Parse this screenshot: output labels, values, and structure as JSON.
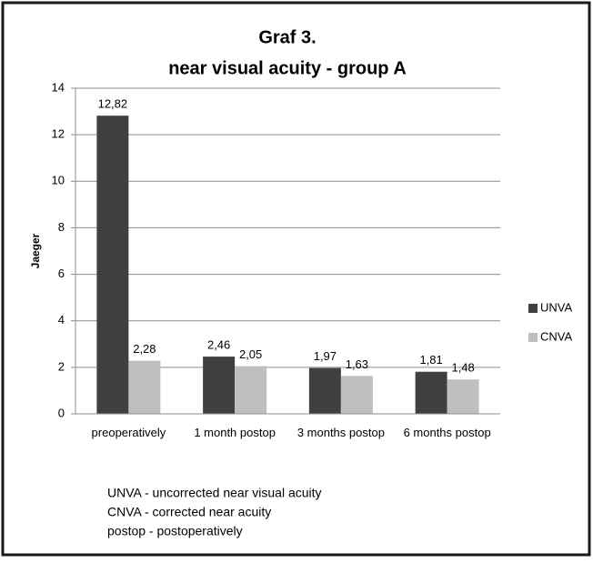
{
  "chart_data": {
    "type": "bar",
    "title": "Graf 3.",
    "subtitle": "near visual acuity - group A",
    "y_label": "Jaeger",
    "categories": [
      "preoperatively",
      "1 month postop",
      "3 months postop",
      "6 months postop"
    ],
    "series": [
      {
        "name": "UNVA",
        "color": "#404040",
        "values": [
          12.82,
          2.46,
          1.97,
          1.81
        ],
        "value_labels": [
          "12,82",
          "2,46",
          "1,97",
          "1,81"
        ]
      },
      {
        "name": "CNVA",
        "color": "#bfbfbf",
        "values": [
          2.28,
          2.05,
          1.63,
          1.48
        ],
        "value_labels": [
          "2,28",
          "2,05",
          "1,63",
          "1,48"
        ]
      }
    ],
    "ylim": [
      0,
      14
    ],
    "yticks": [
      0,
      2,
      4,
      6,
      8,
      10,
      12,
      14
    ],
    "grid": true,
    "legend": "right",
    "notes": [
      "UNVA - uncorrected near visual acuity",
      "CNVA - corrected near acuity",
      "postop - postoperatively"
    ]
  }
}
